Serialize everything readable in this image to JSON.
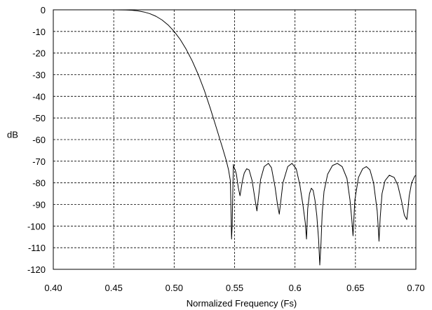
{
  "chart_data": {
    "type": "line",
    "title": "",
    "xlabel": "Normalized Frequency (Fs)",
    "ylabel": "dB",
    "xlim": [
      0.4,
      0.7
    ],
    "ylim": [
      -120,
      0
    ],
    "x_ticks": [
      "0.40",
      "0.45",
      "0.50",
      "0.55",
      "0.6",
      "0.65",
      "0.70"
    ],
    "x_tick_values": [
      0.4,
      0.45,
      0.5,
      0.55,
      0.6,
      0.65,
      0.7
    ],
    "y_ticks": [
      "0",
      "-10",
      "-20",
      "-30",
      "-40",
      "-50",
      "-60",
      "-70",
      "-80",
      "-90",
      "-100",
      "-110",
      "-120"
    ],
    "y_tick_values": [
      0,
      -10,
      -20,
      -30,
      -40,
      -50,
      -60,
      -70,
      -80,
      -90,
      -100,
      -110,
      -120
    ],
    "grid": true,
    "legend": "none",
    "colors": {
      "line": "#000000",
      "grid": "#000000",
      "background": "#ffffff"
    },
    "series": [
      {
        "x": [
          0.45,
          0.46,
          0.465,
          0.47,
          0.475,
          0.48,
          0.485,
          0.49,
          0.495,
          0.5,
          0.505,
          0.51,
          0.515,
          0.52,
          0.525,
          0.53,
          0.535,
          0.54,
          0.543,
          0.545,
          0.5465,
          0.547,
          0.5475,
          0.548,
          0.549,
          0.5495,
          0.5505,
          0.551,
          0.5515,
          0.552,
          0.553,
          0.5545,
          0.5565,
          0.558,
          0.56,
          0.562,
          0.5645,
          0.567,
          0.5685,
          0.5695,
          0.5715,
          0.5745,
          0.578,
          0.5805,
          0.5835,
          0.5855,
          0.587,
          0.59,
          0.594,
          0.5975,
          0.601,
          0.604,
          0.6065,
          0.6085,
          0.6095,
          0.6105,
          0.612,
          0.6135,
          0.615,
          0.6165,
          0.618,
          0.6195,
          0.6205,
          0.6215,
          0.6225,
          0.624,
          0.627,
          0.631,
          0.635,
          0.639,
          0.643,
          0.6455,
          0.647,
          0.648,
          0.6495,
          0.6525,
          0.656,
          0.659,
          0.662,
          0.665,
          0.668,
          0.669,
          0.6695,
          0.6705,
          0.672,
          0.6745,
          0.678,
          0.682,
          0.685,
          0.688,
          0.6905,
          0.6925,
          0.6935,
          0.6945,
          0.6965,
          0.699,
          0.7
        ],
        "y": [
          0.0,
          -0.1,
          -0.2,
          -0.5,
          -1.0,
          -1.8,
          -3.0,
          -4.7,
          -7.0,
          -10.0,
          -13.7,
          -18.3,
          -23.7,
          -30.0,
          -37.3,
          -45.7,
          -54.7,
          -63.8,
          -69.5,
          -74.0,
          -79.0,
          -92.0,
          -106.0,
          -100.0,
          -71.5,
          -73.0,
          -74.0,
          -75.0,
          -76.0,
          -78.0,
          -82.0,
          -86.0,
          -79.0,
          -75.5,
          -73.5,
          -74.0,
          -79.0,
          -88.0,
          -93.0,
          -88.0,
          -78.5,
          -72.5,
          -71.0,
          -73.0,
          -82.0,
          -90.0,
          -94.5,
          -80.0,
          -72.5,
          -71.0,
          -73.5,
          -81.0,
          -90.0,
          -98.5,
          -106.0,
          -92.0,
          -85.0,
          -82.5,
          -83.5,
          -88.0,
          -95.0,
          -106.0,
          -118.0,
          -108.0,
          -94.0,
          -84.0,
          -76.0,
          -72.0,
          -71.0,
          -72.5,
          -78.0,
          -88.0,
          -97.0,
          -104.5,
          -88.0,
          -77.5,
          -73.5,
          -72.5,
          -74.0,
          -80.0,
          -93.0,
          -102.0,
          -107.0,
          -96.0,
          -85.0,
          -79.0,
          -76.5,
          -77.5,
          -81.0,
          -88.0,
          -95.0,
          -97.0,
          -92.0,
          -86.0,
          -80.0,
          -77.0,
          -76.5
        ]
      }
    ]
  }
}
